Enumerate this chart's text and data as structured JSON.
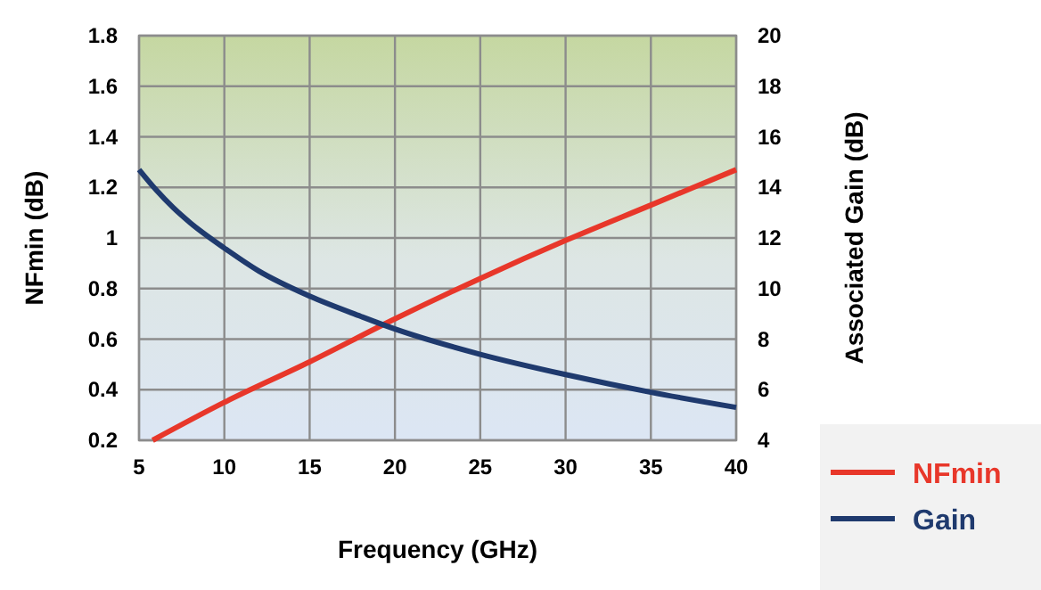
{
  "chart_data": {
    "type": "line",
    "xlabel": "Frequency (GHz)",
    "ylabel": "NFmin (dB)",
    "y2label": "Associated Gain (dB)",
    "xlim": [
      5,
      40
    ],
    "xticks": [
      5,
      10,
      15,
      20,
      25,
      30,
      35,
      40
    ],
    "ylim": [
      0.2,
      1.8
    ],
    "yticks": [
      0.2,
      0.4,
      0.6,
      0.8,
      1,
      1.2,
      1.4,
      1.6,
      1.8
    ],
    "y2lim": [
      4,
      20
    ],
    "y2ticks": [
      4,
      6,
      8,
      10,
      12,
      14,
      16,
      18,
      20
    ],
    "grid": true,
    "legend": "bottom right",
    "marker": "none",
    "line_style": "solid",
    "series": [
      {
        "name": "NFmin",
        "color": "#e8372a",
        "x": [
          5.8,
          10,
          15,
          20,
          25,
          30,
          35,
          40
        ],
        "values": [
          0.2,
          0.35,
          0.51,
          0.68,
          0.84,
          0.99,
          1.13,
          1.27
        ]
      },
      {
        "name": "Gain",
        "color": "#1f3a6e",
        "axis": "y2",
        "x": [
          5,
          6,
          7,
          8,
          10,
          12,
          15,
          18,
          20,
          25,
          30,
          35,
          40
        ],
        "values": [
          14.7,
          13.9,
          13.2,
          12.6,
          11.6,
          10.7,
          9.7,
          8.9,
          8.4,
          7.4,
          6.6,
          5.9,
          5.3
        ]
      }
    ]
  }
}
